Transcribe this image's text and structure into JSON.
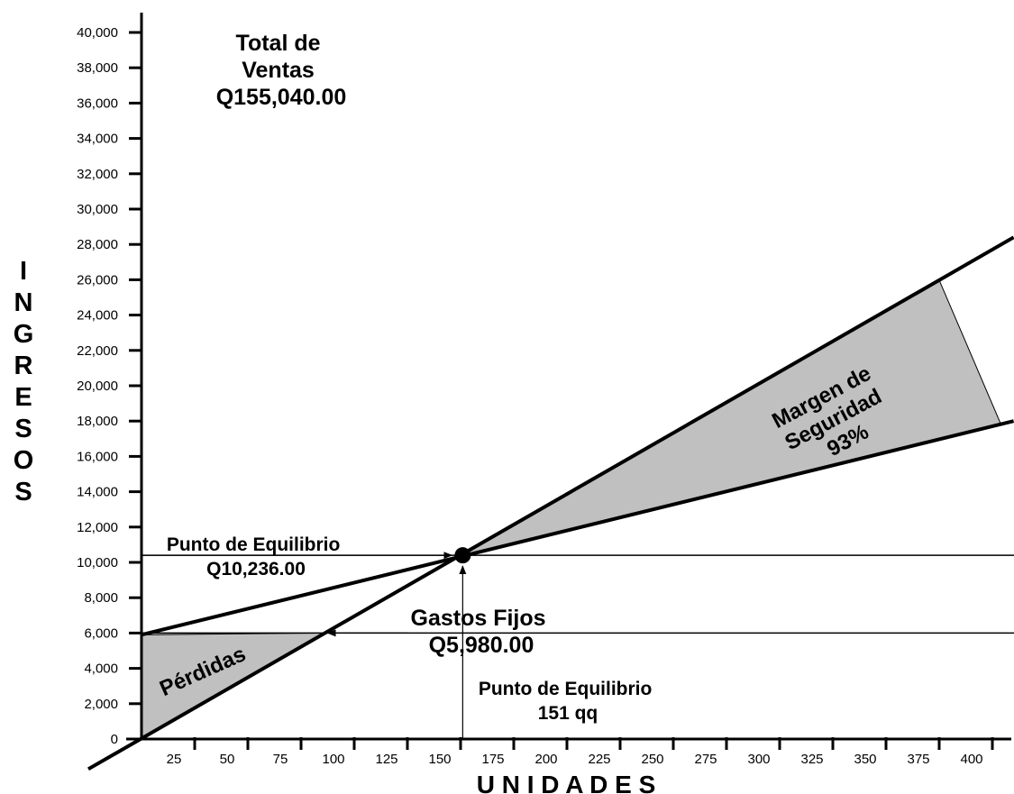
{
  "chart_data": {
    "type": "line",
    "title": "",
    "xlabel": "U N I D A D E S",
    "ylabel": "INGRESOS",
    "xlim": [
      0,
      410
    ],
    "ylim": [
      0,
      40000
    ],
    "x_ticks": [
      25,
      50,
      75,
      100,
      125,
      150,
      175,
      200,
      225,
      250,
      275,
      300,
      325,
      350,
      375,
      400
    ],
    "y_ticks": [
      0,
      2000,
      4000,
      6000,
      8000,
      10000,
      12000,
      14000,
      16000,
      18000,
      20000,
      22000,
      24000,
      26000,
      28000,
      30000,
      32000,
      34000,
      36000,
      38000,
      40000
    ],
    "y_tick_labels": [
      "0",
      "2,000",
      "4,000",
      "6,000",
      "8,000",
      "10,000",
      "12,000",
      "14,000",
      "16,000",
      "18,000",
      "20,000",
      "22,000",
      "24,000",
      "26,000",
      "28,000",
      "30,000",
      "32,000",
      "34,000",
      "36,000",
      "38,000",
      "40,000"
    ],
    "series": [
      {
        "values": [
          [
            -25,
            -1700
          ],
          [
            410,
            28400
          ]
        ]
      },
      {
        "values": [
          [
            0,
            5900
          ],
          [
            410,
            18000
          ]
        ]
      }
    ],
    "reference_lines": [
      {
        "axis": "y",
        "value": 10400
      },
      {
        "axis": "y",
        "value": 6000
      }
    ],
    "break_even": {
      "x": 151,
      "y": 10400
    },
    "annotations": {
      "total_ventas": [
        "Total de",
        "Ventas",
        "Q155,040.00"
      ],
      "punto_equilibrio_ingresos": [
        "Punto de Equilibrio",
        "Q10,236.00"
      ],
      "gastos_fijos": [
        "Gastos Fijos",
        "Q5,980.00"
      ],
      "punto_equilibrio_unidades": [
        "Punto de Equilibrio",
        "151 qq"
      ],
      "perdidas": "Pérdidas",
      "margen": [
        "Margen de",
        "Seguridad",
        "93%"
      ]
    },
    "colors": {
      "shade": "#c0c0c0",
      "line": "#000000"
    }
  }
}
